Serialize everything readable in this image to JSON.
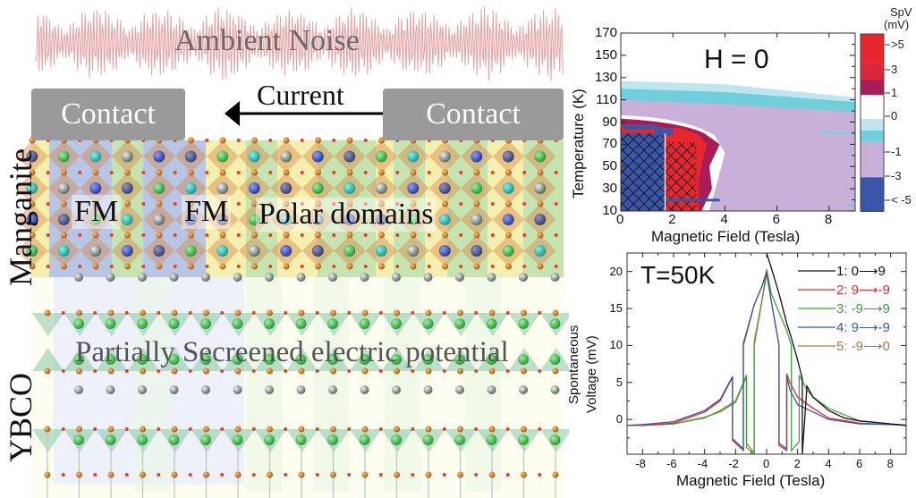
{
  "schematic": {
    "noise_label": "Ambient Noise",
    "current_label": "Current",
    "contact_left": "Contact",
    "contact_right": "Contact",
    "fm_label_1": "FM",
    "fm_label_2": "FM",
    "polar_label": "Polar domains",
    "manganite_label": "Manganite",
    "ybco_label": "YBCO",
    "potential_label": "Partially Secreened electric potential",
    "colors": {
      "noise": "#e8a0a0",
      "contact": "#9a9a9a",
      "fm_domain": "#b8c6e6",
      "polar_yellow": "#f6f0b0",
      "polar_green": "#c6e4b0",
      "octahedra": "#d9884a",
      "ybco_green": "#8cc8a8"
    }
  },
  "chart_data": [
    {
      "type": "heatmap",
      "title": "H = 0",
      "xlabel": "Magnetic Field (Tesla)",
      "ylabel": "Temperature (K)",
      "xlim": [
        0,
        9
      ],
      "ylim": [
        10,
        170
      ],
      "xticks": [
        "0",
        "2",
        "4",
        "6",
        "8"
      ],
      "yticks": [
        "10",
        "30",
        "50",
        "70",
        "90",
        "110",
        "130",
        "150",
        "170"
      ],
      "colorbar": {
        "title": "SpV",
        "unit": "(mV)",
        "tick_labels": [
          ">5",
          "3",
          "1",
          "0",
          "-1",
          "-3",
          "< -5"
        ],
        "bands": [
          {
            "range": ">5",
            "color": "#e8262e"
          },
          {
            "range": "3 to 5",
            "color": "#d8263a"
          },
          {
            "range": "1 to 3",
            "color": "#a81c58"
          },
          {
            "range": "-1 to 1",
            "color": "#ffffff"
          },
          {
            "range": "-1 (light)",
            "color": "#bfe6ef"
          },
          {
            "range": "-1 (cyan)",
            "color": "#6fcfdb"
          },
          {
            "range": "-3 to -1",
            "color": "#c8b0d8"
          },
          {
            "range": "< -5",
            "color": "#3a56a8"
          }
        ]
      },
      "regions": [
        {
          "name": "negative-hatched",
          "value": "< -5",
          "field_range": [
            0,
            1.7
          ],
          "temp_range": [
            10,
            80
          ],
          "hatched": true
        },
        {
          "name": "positive-hatched",
          "value": ">5",
          "field_range": [
            1.7,
            2.9
          ],
          "temp_range": [
            10,
            72
          ],
          "hatched": true
        },
        {
          "name": "cyan-band",
          "value": "-1",
          "field_range": [
            0,
            9
          ],
          "temp_range": [
            100,
            127
          ]
        },
        {
          "name": "purple-background",
          "value": "-3 to -1",
          "field_range": [
            0,
            9
          ],
          "temp_range": [
            10,
            110
          ]
        }
      ]
    },
    {
      "type": "line",
      "annotation": "T=50K",
      "xlabel": "Magnetic Field (Tesla)",
      "ylabel": "Spontaneous Voltage (mV)",
      "ylabel_lines": [
        "Spontaneous",
        "Voltage (mV)"
      ],
      "xlim": [
        -9,
        9
      ],
      "ylim": [
        -4.7,
        22.5
      ],
      "xticks": [
        "-8",
        "-6",
        "-4",
        "-2",
        "0",
        "2",
        "4",
        "6",
        "8"
      ],
      "yticks": [
        "0",
        "5",
        "10",
        "15",
        "20"
      ],
      "legend_position": "top-right",
      "series": [
        {
          "name": "1: 0⟶9",
          "color": "#111111",
          "x": [
            0,
            0.3,
            0.8,
            1.3,
            1.6,
            2.0,
            2.3,
            2.3,
            2.6,
            3.0,
            4.0,
            5.0,
            6.0,
            7.0,
            8.0,
            9.0
          ],
          "y": [
            22.5,
            20.5,
            17.0,
            13.0,
            11.0,
            8.0,
            5.5,
            -4.7,
            4.5,
            3.0,
            1.2,
            0.2,
            -0.2,
            -0.4,
            -0.6,
            -0.8
          ]
        },
        {
          "name": "2: 9⟶-9",
          "color": "#e8262e",
          "x": [
            9,
            8,
            6,
            4,
            3,
            2,
            1.5,
            1.3,
            1.3,
            0.8,
            0.8,
            0.3,
            0,
            -0.3,
            -0.8,
            -1.5,
            -1.5,
            -2.2,
            -2.2,
            -3,
            -4,
            -6,
            -8,
            -9
          ],
          "y": [
            -0.8,
            -0.7,
            -0.5,
            0.2,
            1.5,
            3.0,
            5.0,
            6.2,
            -4.2,
            -3.5,
            10.0,
            16.0,
            19.8,
            18.0,
            15.5,
            10.0,
            -4.2,
            -2.8,
            5.7,
            2.5,
            1.0,
            -0.5,
            -0.8,
            -0.8
          ]
        },
        {
          "name": "3: -9⟶9",
          "color": "#3aa63a",
          "x": [
            -9,
            -8,
            -6,
            -4,
            -3,
            -2,
            -1.3,
            -1.3,
            -0.8,
            -0.8,
            -0.3,
            0,
            0.3,
            0.8,
            1.3,
            1.6,
            1.6,
            2.1,
            2.1,
            2.6,
            3,
            4,
            6,
            8,
            9
          ],
          "y": [
            -0.8,
            -0.8,
            -0.6,
            0.2,
            1.2,
            2.5,
            6.0,
            -3.8,
            -4.6,
            10.0,
            16.0,
            20.3,
            17.0,
            14.5,
            12.0,
            10.0,
            -4.2,
            -3.0,
            6.0,
            4.0,
            3.0,
            1.5,
            -0.2,
            -0.6,
            -0.8
          ]
        },
        {
          "name": "4: 9⟶-9",
          "color": "#3a56a8",
          "x": [
            9,
            8,
            6,
            4,
            3,
            2,
            1.5,
            1.3,
            1.3,
            0.8,
            0.8,
            0.3,
            0,
            -0.3,
            -0.8,
            -1.5,
            -1.5,
            -2.2,
            -2.2,
            -3,
            -4,
            -6,
            -8,
            -9
          ],
          "y": [
            -0.8,
            -0.7,
            -0.6,
            0.0,
            1.0,
            2.0,
            4.0,
            5.8,
            -4.0,
            -3.2,
            10.0,
            16.0,
            20.0,
            18.0,
            15.5,
            10.3,
            -4.0,
            -2.6,
            5.8,
            2.7,
            1.2,
            -0.3,
            -0.7,
            -0.8
          ]
        },
        {
          "name": "5: -9⟶0",
          "color": "#b07a3a",
          "x": [
            -9,
            -8,
            -6,
            -4,
            -3,
            -2,
            -1.3,
            -1.3,
            -0.8,
            -0.8,
            -0.4,
            0
          ],
          "y": [
            -0.8,
            -0.8,
            -0.6,
            0.3,
            1.0,
            2.3,
            5.8,
            -3.2,
            -4.5,
            10.5,
            15.0,
            19.5
          ]
        }
      ]
    }
  ]
}
